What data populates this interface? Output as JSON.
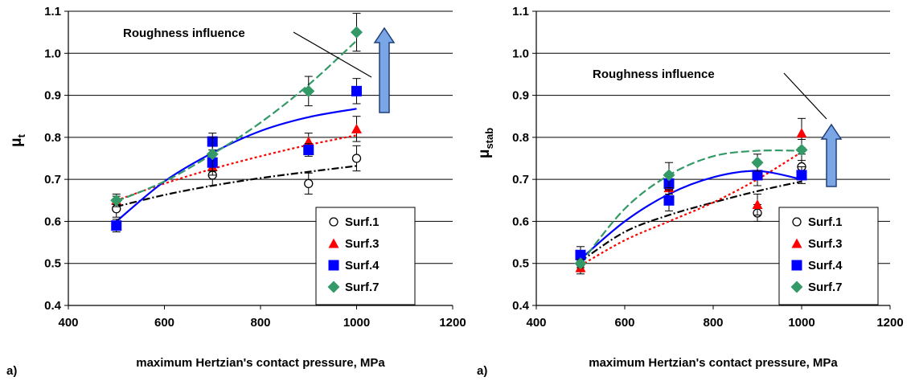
{
  "chart_data": [
    {
      "type": "scatter",
      "panel_label": "a)",
      "ylabel_main": "μ",
      "ylabel_sub": "t",
      "xlabel": "maximum Hertzian's contact pressure, MPa",
      "xlim": [
        400,
        1200
      ],
      "ylim": [
        0.4,
        1.1
      ],
      "xticks": [
        "400",
        "600",
        "800",
        "1000",
        "1200"
      ],
      "yticks": [
        "0.4",
        "0.5",
        "0.6",
        "0.7",
        "0.8",
        "0.9",
        "1.0",
        "1.1"
      ],
      "grid": "horizontal",
      "legend_position": "bottom-right",
      "annotation": "Roughness influence",
      "series": [
        {
          "name": "Surf.1",
          "marker": "circle-open",
          "color": "#000000",
          "line_style": "dashdot",
          "x": [
            500,
            700,
            900,
            1000
          ],
          "y": [
            0.63,
            0.71,
            0.69,
            0.75
          ],
          "err": [
            0.02,
            0.025,
            0.025,
            0.03
          ],
          "trend": [
            [
              500,
              0.635
            ],
            [
              600,
              0.663
            ],
            [
              700,
              0.685
            ],
            [
              800,
              0.703
            ],
            [
              900,
              0.718
            ],
            [
              1000,
              0.732
            ]
          ]
        },
        {
          "name": "Surf.3",
          "marker": "triangle",
          "color": "#ff0000",
          "line_style": "dotted",
          "x": [
            500,
            700,
            900,
            1000
          ],
          "y": [
            0.65,
            0.73,
            0.79,
            0.82
          ],
          "err": [
            0.015,
            0.02,
            0.02,
            0.03
          ],
          "trend": [
            [
              500,
              0.65
            ],
            [
              600,
              0.69
            ],
            [
              700,
              0.725
            ],
            [
              800,
              0.755
            ],
            [
              900,
              0.782
            ],
            [
              1000,
              0.805
            ]
          ]
        },
        {
          "name": "Surf.4",
          "marker": "square",
          "color": "#0000ff",
          "line_style": "solid",
          "x": [
            500,
            700,
            700,
            900,
            1000
          ],
          "y": [
            0.59,
            0.74,
            0.79,
            0.77,
            0.91
          ],
          "err": [
            0.015,
            0.02,
            0.02,
            0.015,
            0.03
          ],
          "trend": [
            [
              500,
              0.6
            ],
            [
              600,
              0.695
            ],
            [
              700,
              0.763
            ],
            [
              800,
              0.815
            ],
            [
              900,
              0.848
            ],
            [
              1000,
              0.868
            ]
          ]
        },
        {
          "name": "Surf.7",
          "marker": "diamond",
          "color": "#339966",
          "line_style": "dashed",
          "x": [
            500,
            700,
            900,
            1000
          ],
          "y": [
            0.65,
            0.76,
            0.91,
            1.05
          ],
          "err": [
            0.01,
            0.04,
            0.035,
            0.045
          ],
          "trend": [
            [
              500,
              0.648
            ],
            [
              600,
              0.695
            ],
            [
              700,
              0.76
            ],
            [
              800,
              0.835
            ],
            [
              900,
              0.925
            ],
            [
              1000,
              1.03
            ]
          ]
        }
      ]
    },
    {
      "type": "scatter",
      "panel_label": "a)",
      "ylabel_main": "μ",
      "ylabel_sub": "stab",
      "xlabel": "maximum Hertzian's contact pressure, MPa",
      "xlim": [
        400,
        1200
      ],
      "ylim": [
        0.4,
        1.1
      ],
      "xticks": [
        "400",
        "600",
        "800",
        "1000",
        "1200"
      ],
      "yticks": [
        "0.4",
        "0.5",
        "0.6",
        "0.7",
        "0.8",
        "0.9",
        "1.0",
        "1.1"
      ],
      "grid": "horizontal",
      "legend_position": "bottom-right",
      "annotation": "Roughness influence",
      "series": [
        {
          "name": "Surf.1",
          "marker": "circle-open",
          "color": "#000000",
          "line_style": "dashdot",
          "x": [
            500,
            700,
            900,
            1000
          ],
          "y": [
            0.5,
            0.68,
            0.62,
            0.73
          ],
          "err": [
            0.02,
            0.03,
            0.02,
            0.03
          ],
          "trend": [
            [
              500,
              0.505
            ],
            [
              600,
              0.575
            ],
            [
              700,
              0.615
            ],
            [
              800,
              0.645
            ],
            [
              900,
              0.672
            ],
            [
              1000,
              0.695
            ]
          ]
        },
        {
          "name": "Surf.3",
          "marker": "triangle",
          "color": "#ff0000",
          "line_style": "dotted",
          "x": [
            500,
            700,
            900,
            1000
          ],
          "y": [
            0.49,
            0.68,
            0.64,
            0.81
          ],
          "err": [
            0.015,
            0.03,
            0.025,
            0.035
          ],
          "trend": [
            [
              500,
              0.495
            ],
            [
              600,
              0.555
            ],
            [
              700,
              0.6
            ],
            [
              800,
              0.645
            ],
            [
              900,
              0.7
            ],
            [
              1000,
              0.765
            ]
          ]
        },
        {
          "name": "Surf.4",
          "marker": "square",
          "color": "#0000ff",
          "line_style": "solid",
          "x": [
            500,
            700,
            700,
            900,
            1000
          ],
          "y": [
            0.52,
            0.65,
            0.69,
            0.71,
            0.71
          ],
          "err": [
            0.02,
            0.025,
            0.025,
            0.025,
            0.02
          ],
          "trend": [
            [
              500,
              0.51
            ],
            [
              600,
              0.6
            ],
            [
              700,
              0.665
            ],
            [
              800,
              0.705
            ],
            [
              900,
              0.72
            ],
            [
              1000,
              0.7
            ]
          ]
        },
        {
          "name": "Surf.7",
          "marker": "diamond",
          "color": "#339966",
          "line_style": "dashed",
          "x": [
            500,
            700,
            900,
            1000
          ],
          "y": [
            0.5,
            0.71,
            0.74,
            0.77
          ],
          "err": [
            0.01,
            0.03,
            0.02,
            0.025
          ],
          "trend": [
            [
              500,
              0.5
            ],
            [
              600,
              0.63
            ],
            [
              700,
              0.71
            ],
            [
              800,
              0.755
            ],
            [
              900,
              0.768
            ],
            [
              1000,
              0.768
            ]
          ]
        }
      ]
    }
  ],
  "colors": {
    "axis": "#000000",
    "grid": "#000000",
    "arrow_fill": "#7aa6e6",
    "arrow_stroke": "#1f3f7a"
  }
}
